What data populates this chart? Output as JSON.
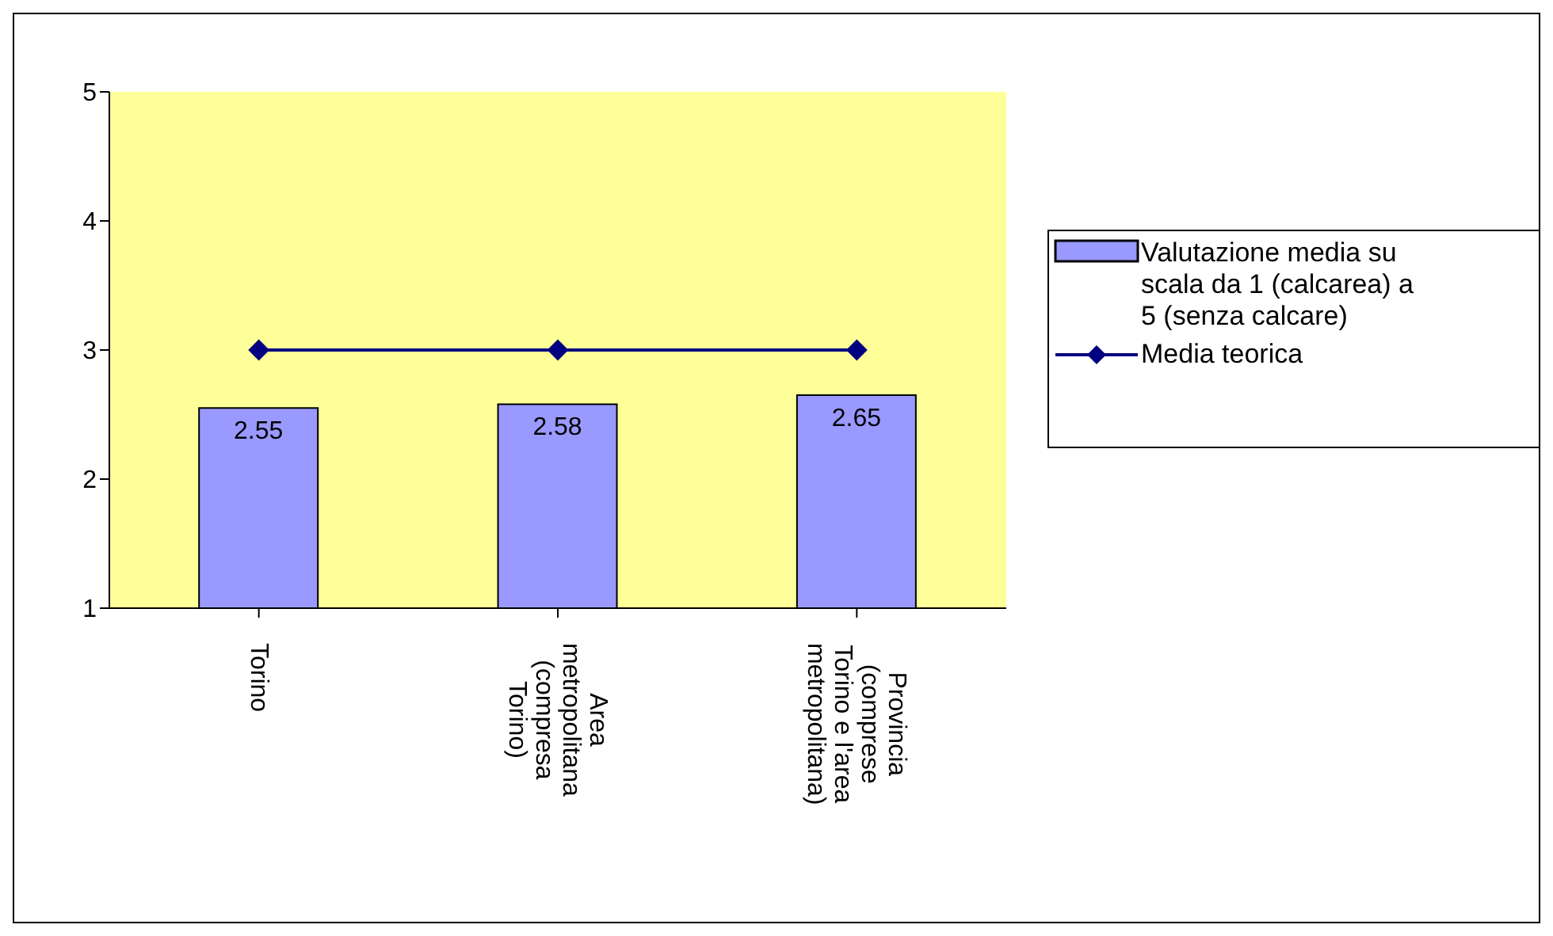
{
  "chart_data": {
    "type": "bar",
    "categories": [
      "Torino",
      "Area metropolitana (compresa Torino)",
      "Provincia (comprese Torino e l'area metropolitana)"
    ],
    "series": [
      {
        "name": "Valutazione media su scala da 1 (calcarea) a 5 (senza calcare)",
        "color": "#9999ff",
        "values": [
          2.55,
          2.58,
          2.65
        ],
        "data_labels": true
      },
      {
        "name": "Media teorica",
        "type": "line",
        "color": "#000080",
        "values": [
          3,
          3,
          3
        ],
        "marker": "diamond"
      }
    ],
    "ylim": [
      1,
      5
    ],
    "yticks": [
      1,
      2,
      3,
      4,
      5
    ],
    "grid": false,
    "legend": "right"
  }
}
